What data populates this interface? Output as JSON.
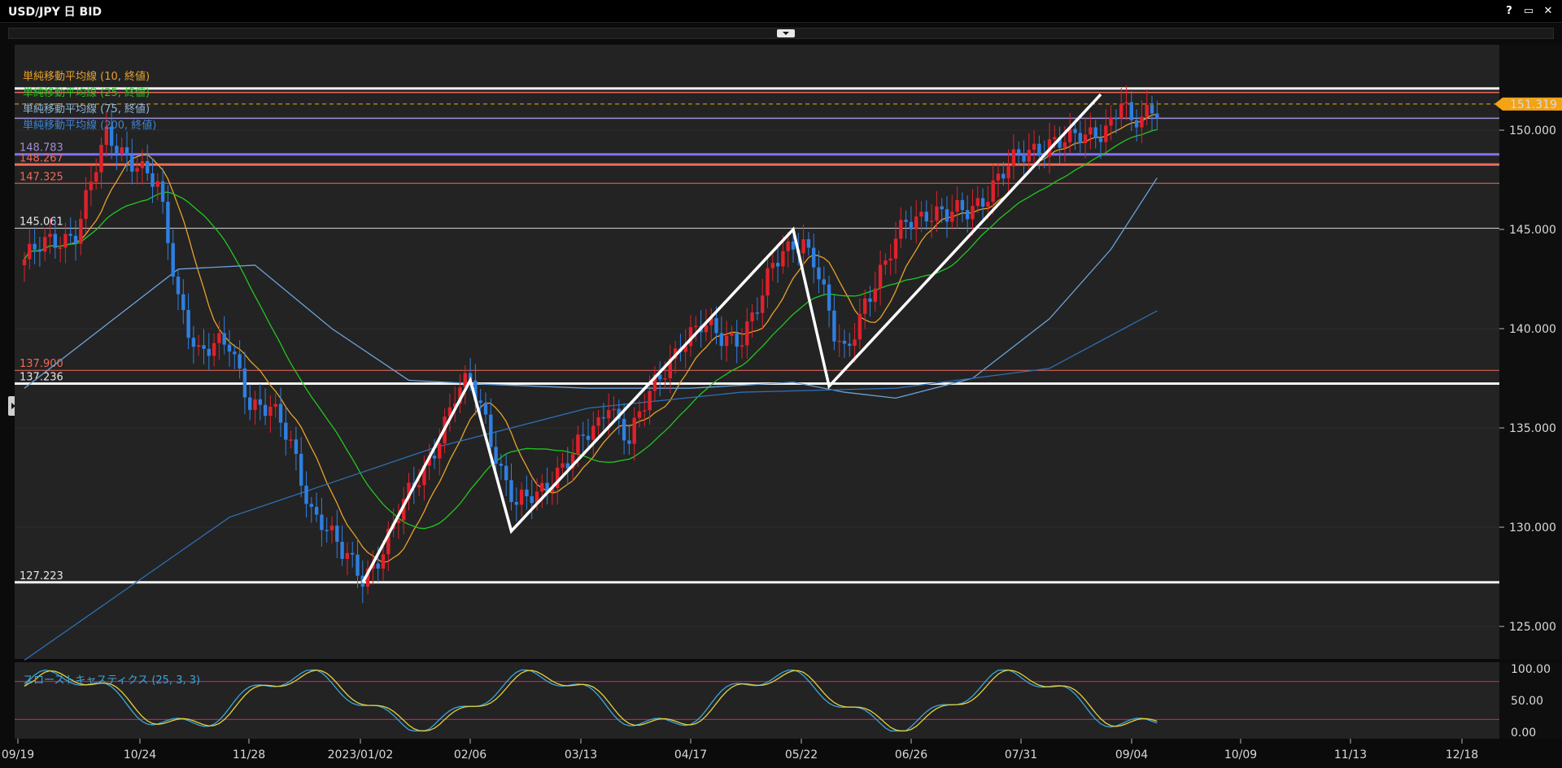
{
  "window": {
    "title": "USD/JPY 日 BID",
    "controls": [
      "?",
      "▭",
      "✕"
    ]
  },
  "colors": {
    "background": "#232323",
    "up_candle": "#e0212b",
    "down_candle": "#2f7fe0",
    "ma10": "#e8a12d",
    "ma25": "#21c721",
    "ma75": "#6aa2d8",
    "ma200": "#2f6fb5",
    "price_tag": "#f4a315"
  },
  "chart_data": {
    "type": "candlestick",
    "price_axis": {
      "ylim": [
        122.5,
        153.5
      ],
      "ticks": [
        "125.000",
        "130.000",
        "135.000",
        "140.000",
        "145.000",
        "150.000"
      ]
    },
    "x_axis": {
      "tick_labels": [
        "09/19",
        "10/24",
        "11/28",
        "2023/01/02",
        "02/06",
        "03/13",
        "04/17",
        "05/22",
        "06/26",
        "07/31",
        "09/04",
        "10/09",
        "11/13",
        "12/18"
      ]
    },
    "current_price": "151.319",
    "legend": [
      {
        "label": "単純移動平均線 (10, 終値)",
        "color": "#e8a12d"
      },
      {
        "label": "単純移動平均線 (25, 終値)",
        "color": "#21c721"
      },
      {
        "label": "単純移動平均線 (75, 終値)",
        "color": "#8fb6d8"
      },
      {
        "label": "単純移動平均線 (200, 終値)",
        "color": "#3b86d4"
      }
    ],
    "level_labels": [
      {
        "text": "148.783",
        "color": "#a08fd0"
      },
      {
        "text": "148.267",
        "color": "#ef6b5a"
      },
      {
        "text": "147.325",
        "color": "#ef6b5a"
      },
      {
        "text": "145.061",
        "color": "#e6e6e6"
      },
      {
        "text": "137.900",
        "color": "#ef6b5a"
      },
      {
        "text": "137.236",
        "color": "#e6e6e6"
      },
      {
        "text": "127.223",
        "color": "#e6e6e6"
      }
    ],
    "stochastic": {
      "legend": "スローストキャスティクス (25, 3, 3)",
      "ticks": [
        "100.00",
        "50.00",
        "0.00"
      ],
      "levels": [
        80,
        20
      ]
    }
  }
}
